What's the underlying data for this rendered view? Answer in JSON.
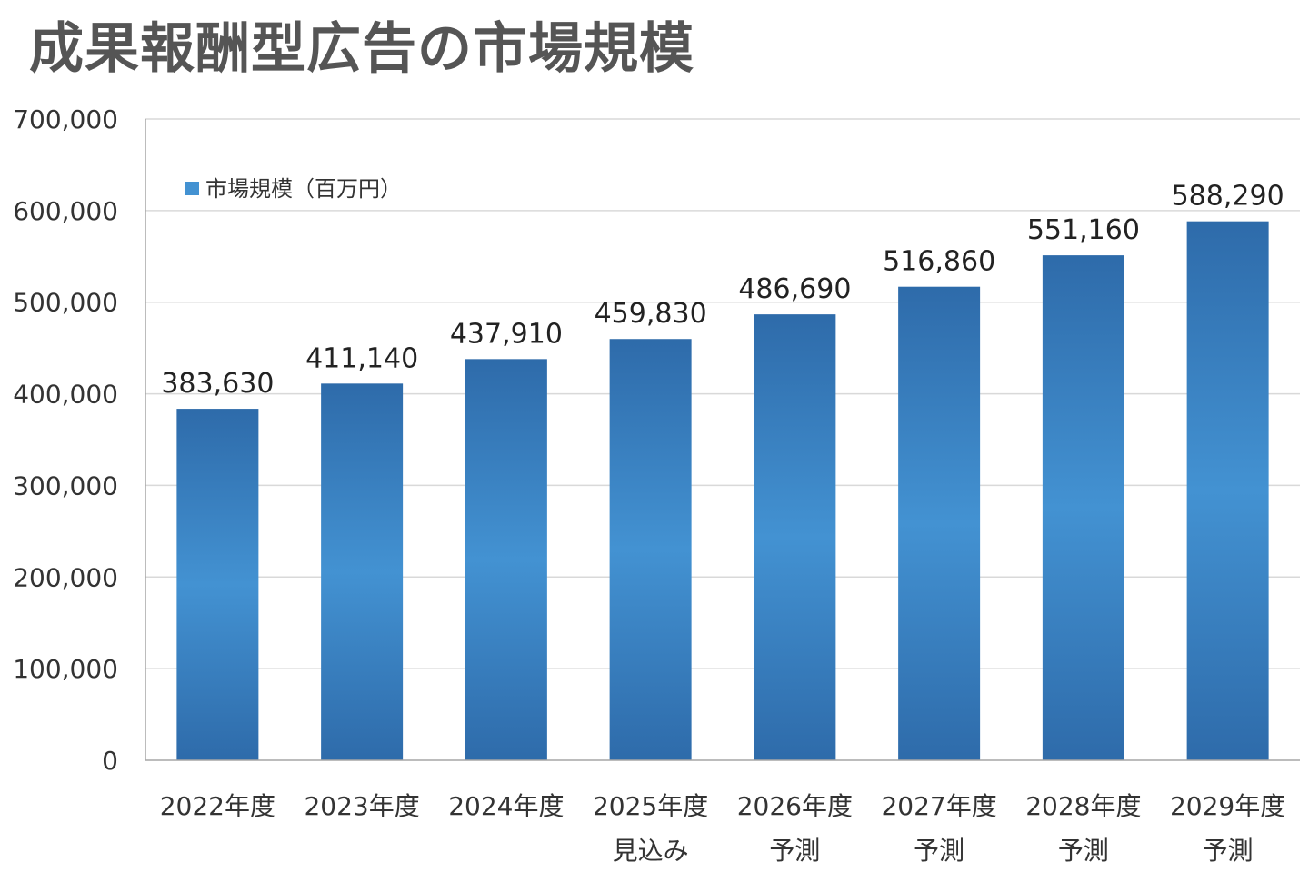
{
  "title": "成果報酬型広告の市場規模",
  "chart_data": {
    "type": "bar",
    "title": "成果報酬型広告の市場規模",
    "xlabel": "",
    "ylabel": "",
    "categories": [
      [
        "2022年度",
        ""
      ],
      [
        "2023年度",
        ""
      ],
      [
        "2024年度",
        ""
      ],
      [
        "2025年度",
        "見込み"
      ],
      [
        "2026年度",
        "予測"
      ],
      [
        "2027年度",
        "予測"
      ],
      [
        "2028年度",
        "予測"
      ],
      [
        "2029年度",
        "予測"
      ]
    ],
    "series": [
      {
        "name": "市場規模（百万円）",
        "values": [
          383630,
          411140,
          437910,
          459830,
          486690,
          516860,
          551160,
          588290
        ],
        "labels": [
          "383,630",
          "411,140",
          "437,910",
          "459,830",
          "486,690",
          "516,860",
          "551,160",
          "588,290"
        ]
      }
    ],
    "ylim": [
      0,
      700000
    ],
    "yticks": [
      0,
      100000,
      200000,
      300000,
      400000,
      500000,
      600000,
      700000
    ],
    "ytick_labels": [
      "0",
      "100,000",
      "200,000",
      "300,000",
      "400,000",
      "500,000",
      "600,000",
      "700,000"
    ],
    "grid": true,
    "legend": "top-left",
    "colors": {
      "bar_edge": "#2E6BAA",
      "bar_center": "#4392D2",
      "grid": "#d9d9d9",
      "axis": "#a6a6a6"
    }
  }
}
